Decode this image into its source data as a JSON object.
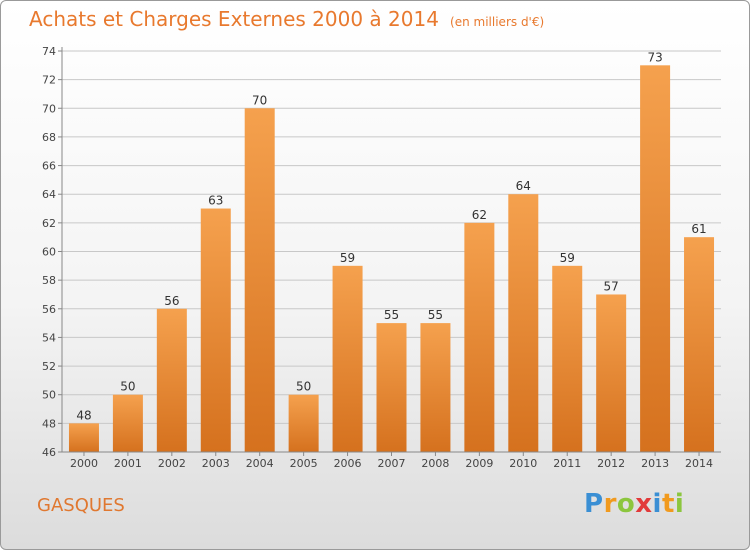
{
  "header": {
    "title": "Achats et Charges Externes 2000 à 2014",
    "subtitle": "(en milliers d'€)"
  },
  "commune": "GASQUES",
  "logo": {
    "text": "Proxiti",
    "letters": [
      "P",
      "r",
      "o",
      "x",
      "i",
      "t",
      "i"
    ]
  },
  "colors": {
    "bar_top": "#f5a14e",
    "bar_bottom": "#d5711e",
    "title": "#e8792e",
    "grid": "#c8c8c8"
  },
  "chart_data": {
    "type": "bar",
    "title": "Achats et Charges Externes 2000 à 2014",
    "subtitle": "(en milliers d'€)",
    "categories": [
      "2000",
      "2001",
      "2002",
      "2003",
      "2004",
      "2005",
      "2006",
      "2007",
      "2008",
      "2009",
      "2010",
      "2011",
      "2012",
      "2013",
      "2014"
    ],
    "values": [
      48,
      50,
      56,
      63,
      70,
      50,
      59,
      55,
      55,
      62,
      64,
      59,
      57,
      73,
      61
    ],
    "ylim": [
      46,
      74
    ],
    "yticks": [
      46,
      48,
      50,
      52,
      54,
      56,
      58,
      60,
      62,
      64,
      66,
      68,
      70,
      72,
      74
    ],
    "xlabel": "",
    "ylabel": "",
    "grid": true,
    "data_labels": true
  }
}
